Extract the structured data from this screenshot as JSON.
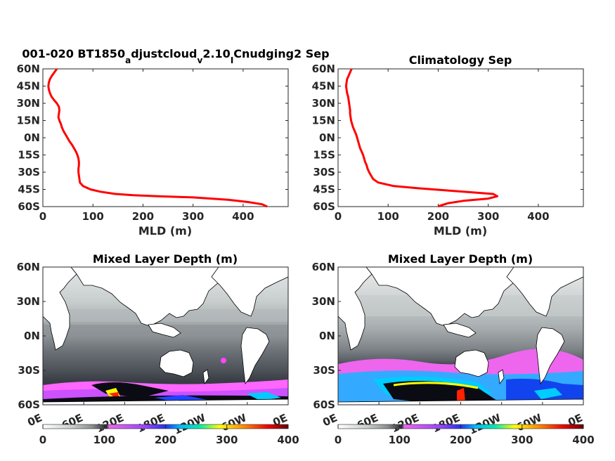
{
  "chart_data": [
    {
      "type": "line",
      "title": "001-020 BT1850",
      "title_sub1": "a",
      "title_mid": "djustcloud",
      "title_sub2": "v",
      "title_mid2": "2.10",
      "title_sub3": "I",
      "title_end": "Cnudging2 Sep",
      "xlabel": "MLD (m)",
      "xlim": [
        0,
        490
      ],
      "ylim": [
        -60,
        60
      ],
      "xticks": [
        "0",
        "100",
        "200",
        "300",
        "400"
      ],
      "yticks": [
        "60N",
        "45N",
        "30N",
        "15N",
        "0N",
        "15S",
        "30S",
        "45S",
        "60S"
      ],
      "line_color": "#ff0000",
      "series": [
        {
          "x": [
            28,
            23,
            18,
            14,
            12,
            11,
            12,
            14,
            17,
            22,
            28,
            32,
            33,
            32,
            31,
            33,
            36,
            38,
            41,
            45,
            49,
            53,
            58,
            62,
            66,
            69,
            71,
            72,
            72,
            71,
            71,
            72,
            73,
            74,
            80,
            95,
            115,
            145,
            180,
            230,
            300,
            370,
            410,
            438,
            448
          ],
          "y": [
            60,
            57,
            54,
            51,
            48,
            45,
            42,
            39,
            36,
            33,
            30,
            27,
            24,
            21,
            18,
            15,
            12,
            9,
            6,
            3,
            0,
            -3,
            -6,
            -9,
            -12,
            -15,
            -18,
            -21,
            -24,
            -27,
            -30,
            -33,
            -36,
            -39,
            -42,
            -45,
            -47,
            -49,
            -50,
            -51,
            -52,
            -54,
            -56,
            -58,
            -60
          ]
        }
      ]
    },
    {
      "type": "line",
      "title": "Climatology Sep",
      "xlabel": "MLD (m)",
      "xlim": [
        0,
        490
      ],
      "ylim": [
        -60,
        60
      ],
      "xticks": [
        "0",
        "100",
        "200",
        "300",
        "400"
      ],
      "yticks": [
        "60N",
        "45N",
        "30N",
        "15N",
        "0N",
        "15S",
        "30S",
        "45S",
        "60S"
      ],
      "line_color": "#ff0000",
      "series": [
        {
          "x": [
            27,
            24,
            21,
            18,
            17,
            16,
            17,
            18,
            20,
            21,
            22,
            23,
            24,
            24,
            25,
            26,
            28,
            30,
            33,
            36,
            38,
            40,
            42,
            44,
            47,
            50,
            52,
            54,
            57,
            59,
            62,
            66,
            70,
            80,
            110,
            160,
            220,
            280,
            310,
            318,
            300,
            250,
            220,
            205,
            200
          ],
          "y": [
            60,
            57,
            54,
            51,
            48,
            45,
            42,
            39,
            36,
            33,
            30,
            27,
            24,
            21,
            18,
            15,
            12,
            9,
            6,
            3,
            0,
            -3,
            -6,
            -9,
            -12,
            -15,
            -18,
            -21,
            -24,
            -27,
            -30,
            -33,
            -36,
            -39,
            -42,
            -44,
            -46,
            -48,
            -49,
            -51,
            -53,
            -55,
            -57,
            -59,
            -60
          ]
        }
      ]
    },
    {
      "type": "heatmap",
      "title": "Mixed Layer Depth (m)",
      "xticks": [
        "0E",
        "60E",
        "120E",
        "180E",
        "120W",
        "60W",
        "0E"
      ],
      "yticks": [
        "60N",
        "30N",
        "0N",
        "30S",
        "60S"
      ],
      "colorbar_ticks": [
        "0",
        "100",
        "200",
        "300",
        "400"
      ],
      "clim": [
        0,
        400
      ]
    },
    {
      "type": "heatmap",
      "title": "Mixed Layer Depth (m)",
      "xticks": [
        "0E",
        "60E",
        "120E",
        "180E",
        "120W",
        "60W",
        "0E"
      ],
      "yticks": [
        "60N",
        "30N",
        "0N",
        "30S",
        "60S"
      ],
      "colorbar_ticks": [
        "0",
        "100",
        "200",
        "300",
        "400"
      ],
      "clim": [
        0,
        400
      ]
    }
  ],
  "colormap": [
    "#ffffff",
    "#c8cccc",
    "#8a9090",
    "#4a4f55",
    "#1a1a24",
    "#ff66ff",
    "#aa44ff",
    "#2244ff",
    "#00ccff",
    "#00ff99",
    "#ffff00",
    "#ff8800",
    "#ff0000",
    "#880000"
  ]
}
